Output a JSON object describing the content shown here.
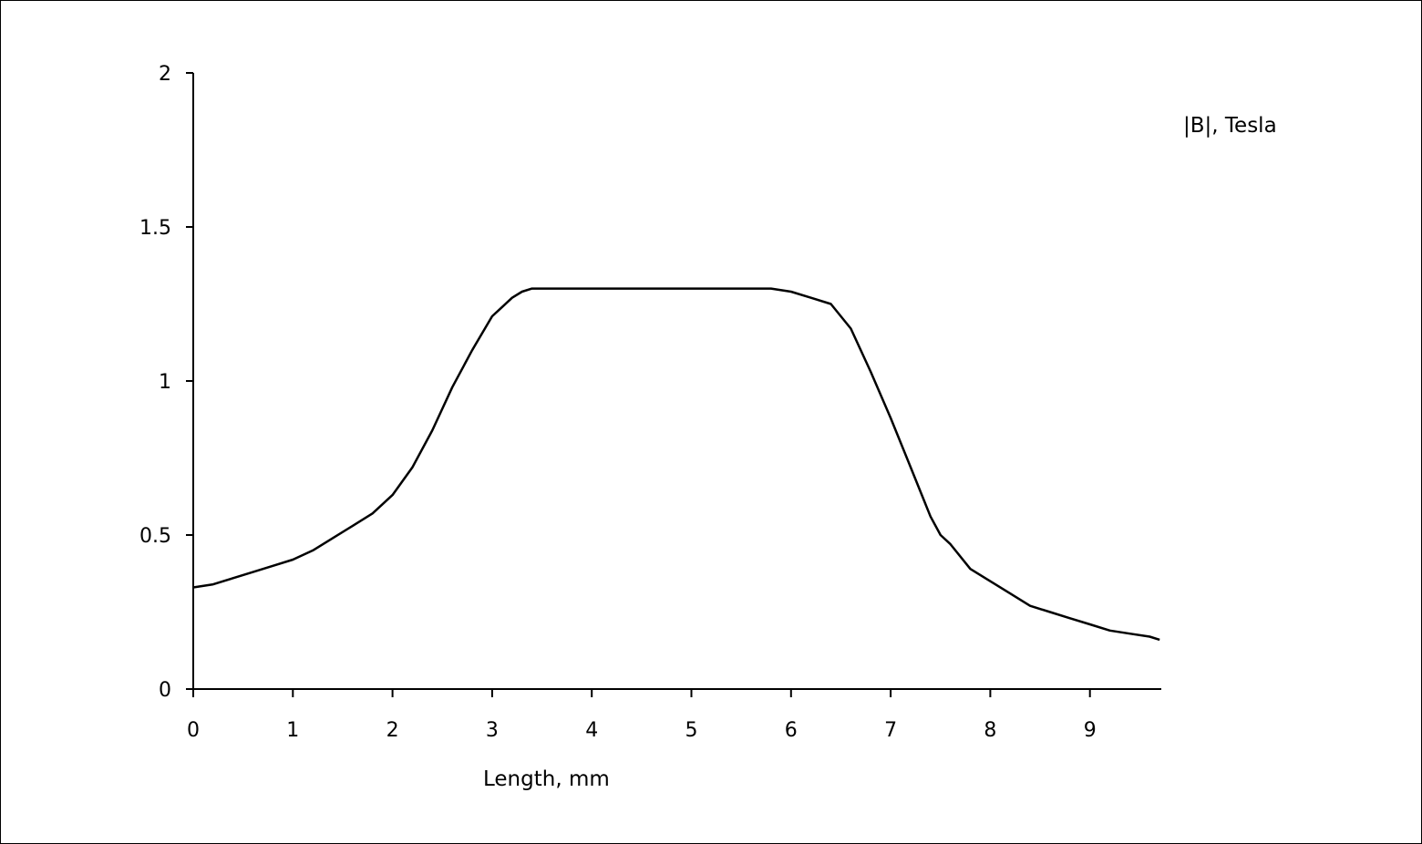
{
  "chart_data": {
    "type": "line",
    "title": "",
    "xlabel": "Length, mm",
    "ylabel": "|B|, Tesla",
    "xlim": [
      0,
      9.7
    ],
    "ylim": [
      0,
      2
    ],
    "x_ticks": [
      "0",
      "1",
      "2",
      "3",
      "4",
      "5",
      "6",
      "7",
      "8",
      "9"
    ],
    "y_ticks": [
      "0",
      "0.5",
      "1",
      "1.5",
      "2"
    ],
    "grid": false,
    "legend": "none",
    "series": [
      {
        "color": "#000000",
        "x": [
          0,
          0.2,
          0.4,
          0.6,
          0.8,
          1.0,
          1.2,
          1.4,
          1.6,
          1.8,
          2.0,
          2.2,
          2.4,
          2.6,
          2.8,
          3.0,
          3.1,
          3.2,
          3.3,
          3.4,
          3.6,
          3.8,
          4.0,
          4.5,
          5.0,
          5.5,
          5.8,
          6.0,
          6.2,
          6.4,
          6.6,
          6.8,
          7.0,
          7.2,
          7.4,
          7.5,
          7.6,
          7.8,
          8.0,
          8.2,
          8.4,
          8.6,
          8.8,
          9.0,
          9.2,
          9.4,
          9.6,
          9.7
        ],
        "y": [
          0.33,
          0.34,
          0.36,
          0.38,
          0.4,
          0.42,
          0.45,
          0.49,
          0.53,
          0.57,
          0.63,
          0.72,
          0.84,
          0.98,
          1.1,
          1.21,
          1.24,
          1.27,
          1.29,
          1.3,
          1.3,
          1.3,
          1.3,
          1.3,
          1.3,
          1.3,
          1.3,
          1.29,
          1.27,
          1.25,
          1.17,
          1.03,
          0.88,
          0.72,
          0.56,
          0.5,
          0.47,
          0.39,
          0.35,
          0.31,
          0.27,
          0.25,
          0.23,
          0.21,
          0.19,
          0.18,
          0.17,
          0.16
        ]
      }
    ]
  }
}
